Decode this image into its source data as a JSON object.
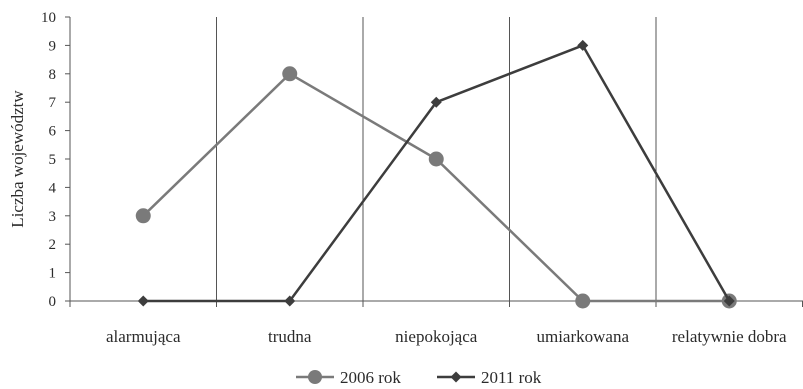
{
  "chart_data": {
    "type": "line",
    "title": "",
    "xlabel": "",
    "ylabel": "Liczba województw",
    "ylim": [
      0,
      10
    ],
    "yticks": [
      0,
      1,
      2,
      3,
      4,
      5,
      6,
      7,
      8,
      9,
      10
    ],
    "grid": "vertical",
    "legend_position": "bottom",
    "categories": [
      "alarmująca",
      "trudna",
      "niepokojąca",
      "umiarkowana",
      "relatywnie dobra"
    ],
    "series": [
      {
        "name": "2006 rok",
        "values": [
          3,
          8,
          5,
          0,
          0
        ],
        "color": "#7a7a7a",
        "marker": "circle"
      },
      {
        "name": "2011 rok",
        "values": [
          0,
          0,
          7,
          9,
          0
        ],
        "color": "#3d3d3d",
        "marker": "diamond"
      }
    ]
  }
}
